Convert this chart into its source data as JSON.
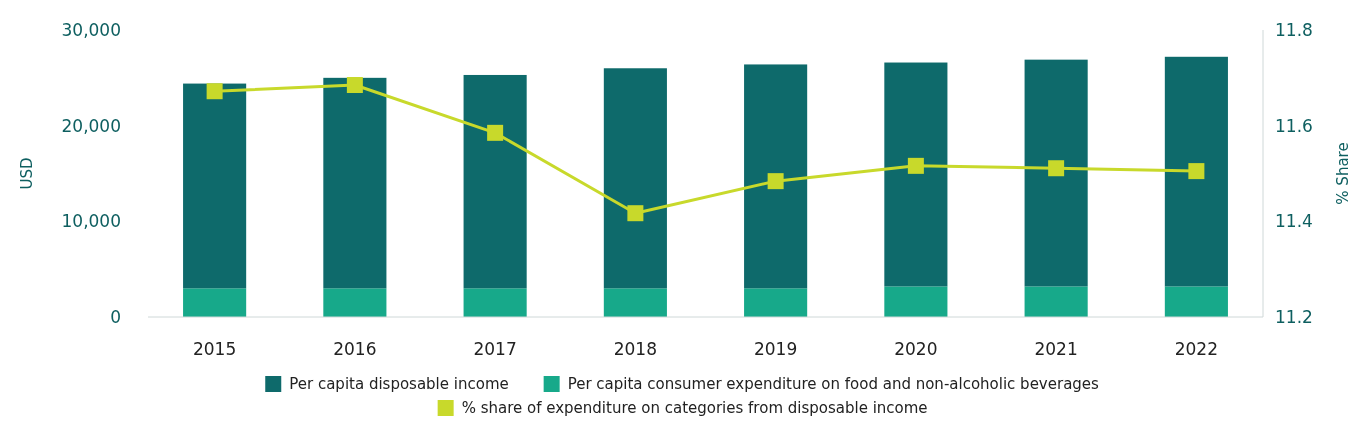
{
  "chart_data": {
    "type": "bar",
    "stacked": true,
    "categories": [
      "2015",
      "2016",
      "2017",
      "2018",
      "2019",
      "2020",
      "2021",
      "2022"
    ],
    "series": [
      {
        "name": "Per capita consumer expenditure on food and non-alcoholic beverages",
        "color": "#17a98a",
        "values": [
          3000,
          3000,
          3000,
          3000,
          3000,
          3200,
          3200,
          3200
        ]
      },
      {
        "name": "Per capita disposable income",
        "color": "#0e6a6b",
        "values": [
          21400,
          22000,
          22300,
          23000,
          23400,
          23400,
          23700,
          24000
        ]
      },
      {
        "name": "% share of expenditure on categories from disposable income",
        "type": "line",
        "axis": "y2",
        "color": "#c8d92b",
        "marker": "square",
        "values": [
          11.672,
          11.685,
          11.585,
          11.417,
          11.484,
          11.516,
          11.511,
          11.505
        ]
      }
    ],
    "ylabel": "USD",
    "y2label": "% Share",
    "ylim": [
      0,
      30000
    ],
    "yticks": [
      {
        "value": 0,
        "label": "0"
      },
      {
        "value": 10000,
        "label": "10,000"
      },
      {
        "value": 20000,
        "label": "20,000"
      },
      {
        "value": 30000,
        "label": "30,000"
      }
    ],
    "y2lim": [
      11.2,
      11.8
    ],
    "y2ticks": [
      11.2,
      11.4,
      11.6,
      11.8
    ],
    "legend": "bottom",
    "grid": false
  }
}
